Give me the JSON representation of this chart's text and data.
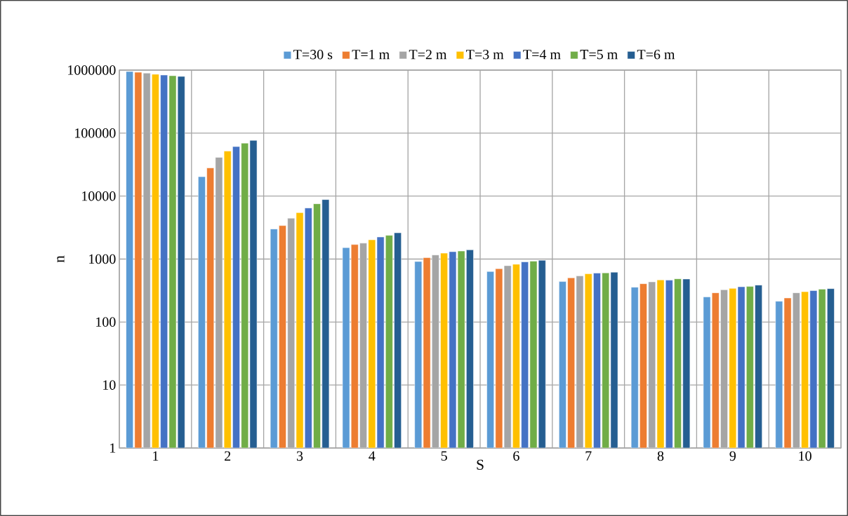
{
  "chart_data": {
    "type": "bar",
    "xlabel": "S",
    "ylabel": "n",
    "categories": [
      "1",
      "2",
      "3",
      "4",
      "5",
      "6",
      "7",
      "8",
      "9",
      "10"
    ],
    "series": [
      {
        "name": "T=30 s",
        "color": "#5b9bd5",
        "values": [
          950000,
          20300,
          3000,
          1520,
          915,
          634,
          439,
          357,
          250,
          214
        ]
      },
      {
        "name": "T=1 m",
        "color": "#ed7d31",
        "values": [
          925000,
          28000,
          3400,
          1700,
          1050,
          703,
          503,
          406,
          291,
          241
        ]
      },
      {
        "name": "T=2 m",
        "color": "#a5a5a5",
        "values": [
          895000,
          41200,
          4450,
          1790,
          1160,
          785,
          539,
          434,
          325,
          291
        ]
      },
      {
        "name": "T=3 m",
        "color": "#ffc000",
        "values": [
          860000,
          51900,
          5450,
          2020,
          1240,
          827,
          582,
          466,
          342,
          303
        ]
      },
      {
        "name": "T=4 m",
        "color": "#4472c4",
        "values": [
          835000,
          61000,
          6470,
          2240,
          1310,
          901,
          598,
          462,
          363,
          315
        ]
      },
      {
        "name": "T=5 m",
        "color": "#70ad47",
        "values": [
          815000,
          69300,
          7550,
          2380,
          1340,
          925,
          603,
          486,
          367,
          333
        ]
      },
      {
        "name": "T=6 m",
        "color": "#255e91",
        "values": [
          795000,
          76800,
          8800,
          2610,
          1400,
          957,
          618,
          482,
          386,
          339
        ]
      }
    ],
    "ylim": [
      1,
      1000000
    ],
    "yticks": [
      1,
      10,
      100,
      1000,
      10000,
      100000,
      1000000
    ],
    "log": "y",
    "grid": true,
    "legend": "top"
  }
}
